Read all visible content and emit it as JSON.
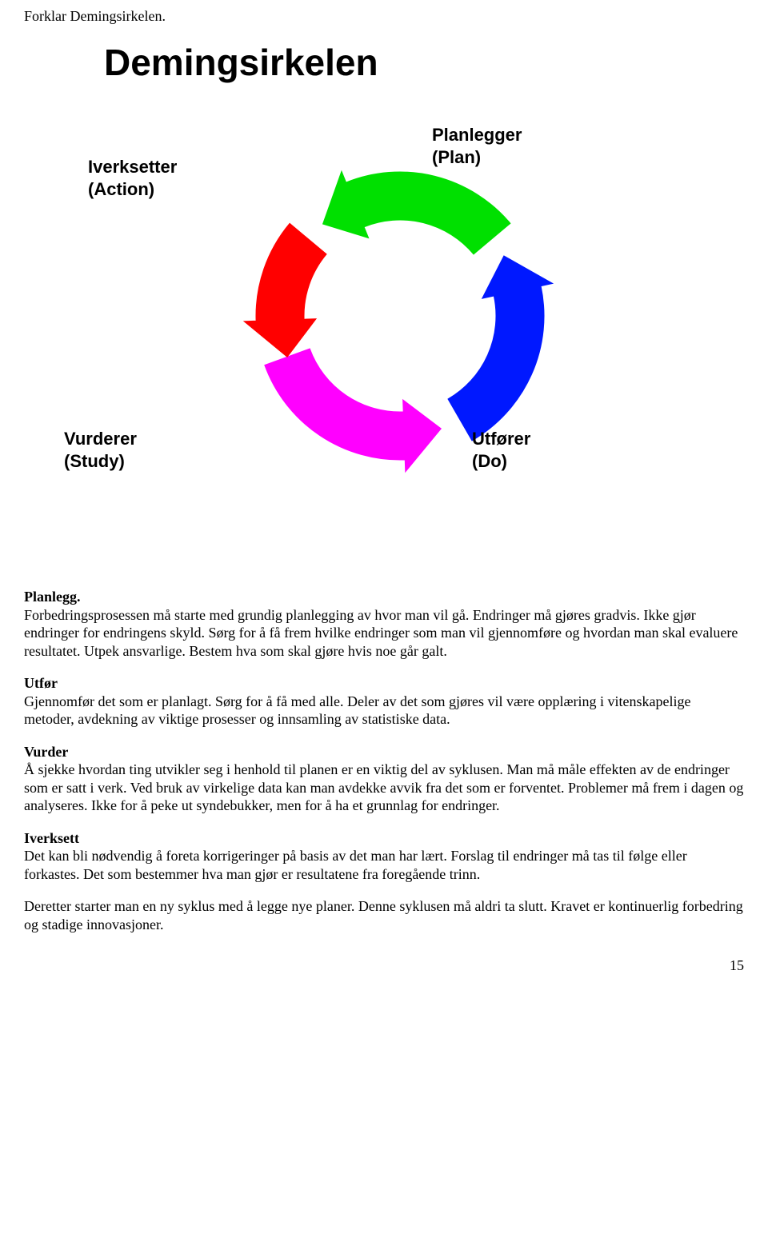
{
  "header": "Forklar Demingsirkelen.",
  "title": "Demingsirkelen",
  "diagram": {
    "type": "cycle",
    "background_color": "#ffffff",
    "arrows": [
      {
        "name": "action",
        "color": "#ff00ff",
        "start_angle": 200,
        "end_angle": 290
      },
      {
        "name": "plan",
        "color": "#0018ff",
        "start_angle": 300,
        "end_angle": 390
      },
      {
        "name": "do",
        "color": "#00e000",
        "start_angle": 40,
        "end_angle": 130
      },
      {
        "name": "study",
        "color": "#ff0000",
        "start_angle": 140,
        "end_angle": 200
      }
    ],
    "labels": {
      "action": {
        "line1": "Iverksetter",
        "line2": "(Action)"
      },
      "plan": {
        "line1": "Planlegger",
        "line2": "(Plan)"
      },
      "study": {
        "line1": "Vurderer",
        "line2": "(Study)"
      },
      "do": {
        "line1": "Utfører",
        "line2": "(Do)"
      }
    },
    "label_font": {
      "family": "Arial",
      "size_pt": 16,
      "weight": "bold",
      "color": "#000000"
    },
    "inner_radius": 120,
    "outer_radius": 180,
    "arrowhead_width": 90
  },
  "sections": {
    "planlegg": {
      "heading": "Planlegg.",
      "text": "Forbedringsprosessen må starte med grundig planlegging av hvor man vil gå. Endringer må gjøres gradvis. Ikke gjør endringer for endringens skyld. Sørg for å få frem hvilke endringer som man vil gjennomføre og hvordan man skal evaluere resultatet. Utpek ansvarlige. Bestem hva som skal gjøre hvis noe går galt."
    },
    "utfor": {
      "heading": "Utfør",
      "text": "Gjennomfør det som er planlagt. Sørg for å få med alle. Deler av det som gjøres vil være opplæring i vitenskapelige metoder, avdekning av viktige prosesser og innsamling av statistiske data."
    },
    "vurder": {
      "heading": "Vurder",
      "text": "Å sjekke hvordan ting utvikler seg i henhold til planen er en viktig del av syklusen. Man må måle effekten av de endringer som er satt i verk. Ved bruk av virkelige data kan man avdekke avvik fra det som er forventet. Problemer må frem i dagen og analyseres. Ikke for å peke ut syndebukker, men for å ha et grunnlag for endringer."
    },
    "iverksett": {
      "heading": "Iverksett",
      "text": "Det kan bli nødvendig å foreta korrigeringer på basis av det man har lært. Forslag til endringer må tas til følge eller forkastes. Det som bestemmer hva man gjør er resultatene fra foregående trinn."
    },
    "closing": "Deretter starter man en ny syklus med å legge nye planer. Denne syklusen må aldri ta slutt. Kravet er kontinuerlig forbedring og stadige innovasjoner."
  },
  "page_number": "15"
}
